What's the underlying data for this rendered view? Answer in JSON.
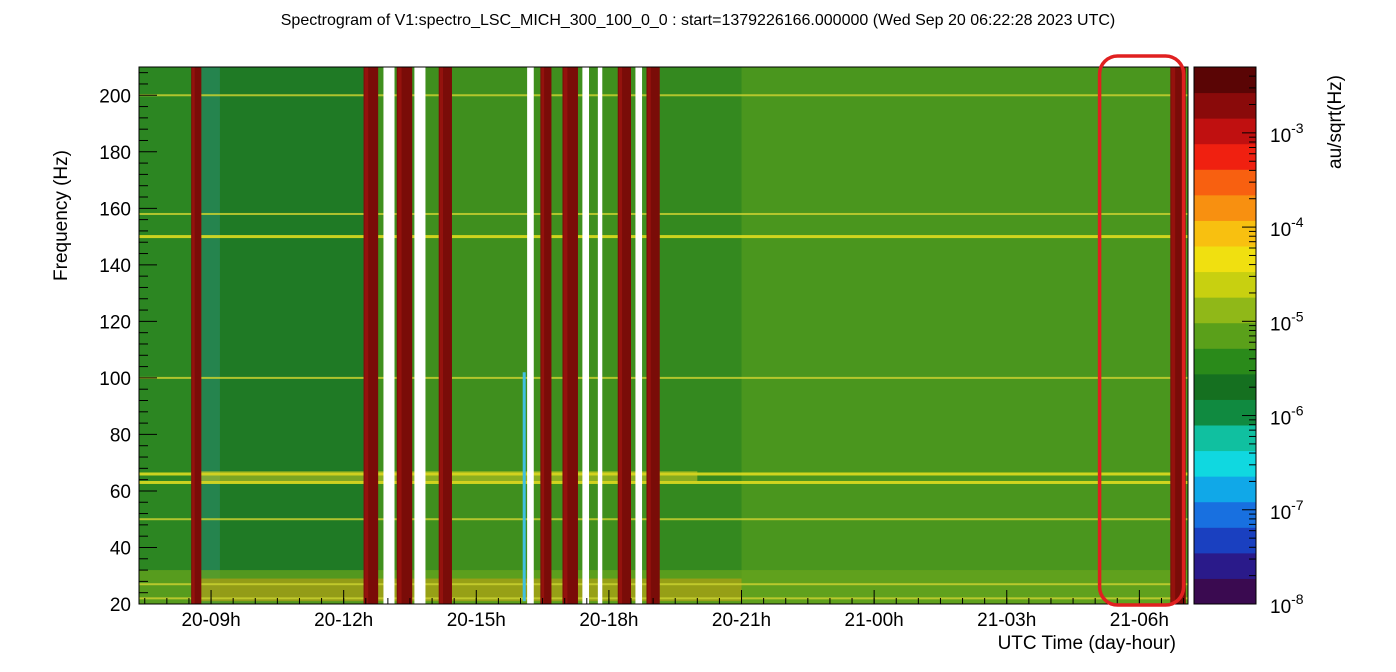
{
  "chart_data": {
    "type": "heatmap",
    "title": "Spectrogram of V1:spectro_LSC_MICH_300_100_0_0 : start=1379226166.000000 (Wed Sep 20 06:22:28 2023 UTC)",
    "xlabel": "UTC Time (day-hour)",
    "ylabel": "Frequency (Hz)",
    "colorbar_label": "au/sqrt(Hz)",
    "x_ticks": [
      "20-09h",
      "20-12h",
      "20-15h",
      "20-18h",
      "20-21h",
      "21-00h",
      "21-03h",
      "21-06h"
    ],
    "x_tick_hours": [
      9,
      12,
      15,
      18,
      21,
      24,
      27,
      30
    ],
    "xlim_hours": [
      7.37,
      31.1
    ],
    "y_ticks": [
      20,
      40,
      60,
      80,
      100,
      120,
      140,
      160,
      180,
      200
    ],
    "ylim": [
      20,
      210
    ],
    "colorbar_ticks": [
      {
        "base": "10",
        "exp": "-3",
        "value": 0.001
      },
      {
        "base": "10",
        "exp": "-4",
        "value": 0.0001
      },
      {
        "base": "10",
        "exp": "-5",
        "value": 1e-05
      },
      {
        "base": "10",
        "exp": "-6",
        "value": 1e-06
      },
      {
        "base": "10",
        "exp": "-7",
        "value": 1e-07
      },
      {
        "base": "10",
        "exp": "-8",
        "value": 1e-08
      }
    ],
    "colorbar_range": [
      1e-08,
      0.005
    ],
    "colorbar_scale": "log",
    "background_level": 2e-05,
    "spectral_lines_hz": [
      22,
      27,
      50,
      63,
      66,
      100,
      150,
      158,
      200
    ],
    "saturated_intervals_hours": [
      [
        8.55,
        8.78
      ],
      [
        12.45,
        12.78
      ],
      [
        13.2,
        13.55
      ],
      [
        14.15,
        14.45
      ],
      [
        16.45,
        16.7
      ],
      [
        16.95,
        17.3
      ],
      [
        18.2,
        18.5
      ],
      [
        18.85,
        19.15
      ],
      [
        30.7,
        31.05
      ]
    ],
    "gap_intervals_hours": [
      [
        12.9,
        13.15
      ],
      [
        13.6,
        13.85
      ],
      [
        16.15,
        16.3
      ],
      [
        17.4,
        17.55
      ],
      [
        17.75,
        17.85
      ],
      [
        18.6,
        18.75
      ]
    ],
    "annotation": {
      "type": "rounded-rectangle",
      "color": "#e02020",
      "x_range_hours": [
        29.1,
        31.0
      ]
    }
  }
}
